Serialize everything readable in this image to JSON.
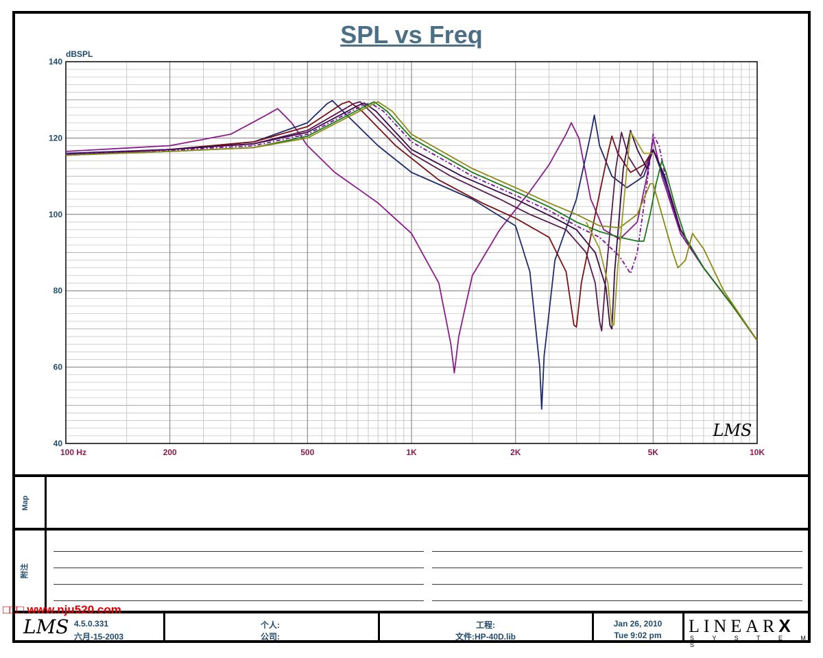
{
  "title": "SPL vs Freq",
  "chart_data": {
    "type": "line",
    "title": "SPL vs Freq",
    "ylabel": "dBSPL",
    "xlabel": "",
    "x_scale": "log",
    "xlim": [
      100,
      10000
    ],
    "ylim": [
      40,
      140
    ],
    "grid": true,
    "x_ticks": [
      {
        "v": 100,
        "label": "100  Hz"
      },
      {
        "v": 200,
        "label": "200"
      },
      {
        "v": 500,
        "label": "500"
      },
      {
        "v": 1000,
        "label": "1K"
      },
      {
        "v": 2000,
        "label": "2K"
      },
      {
        "v": 5000,
        "label": "5K"
      },
      {
        "v": 10000,
        "label": "10K"
      }
    ],
    "y_ticks": [
      {
        "v": 40,
        "label": "40"
      },
      {
        "v": 60,
        "label": "60"
      },
      {
        "v": 80,
        "label": "80"
      },
      {
        "v": 100,
        "label": "100"
      },
      {
        "v": 120,
        "label": "120"
      },
      {
        "v": 140,
        "label": "140"
      }
    ],
    "series": [
      {
        "color": "#8b1a8b",
        "dash": "",
        "points": [
          [
            100,
            116.5
          ],
          [
            200,
            118
          ],
          [
            300,
            121
          ],
          [
            380,
            126
          ],
          [
            410,
            127.7
          ],
          [
            450,
            124
          ],
          [
            500,
            118
          ],
          [
            600,
            111
          ],
          [
            800,
            103
          ],
          [
            1000,
            95
          ],
          [
            1200,
            82
          ],
          [
            1300,
            66
          ],
          [
            1330,
            58.5
          ],
          [
            1370,
            68
          ],
          [
            1500,
            84
          ],
          [
            1800,
            96
          ],
          [
            2200,
            106
          ],
          [
            2500,
            113
          ],
          [
            2800,
            121
          ],
          [
            2900,
            124
          ],
          [
            3050,
            120
          ],
          [
            3300,
            104
          ],
          [
            3600,
            96
          ],
          [
            4000,
            93.5
          ],
          [
            4500,
            98
          ],
          [
            4800,
            110
          ],
          [
            5000,
            120
          ],
          [
            5300,
            110
          ],
          [
            6000,
            95
          ],
          [
            7000,
            86
          ],
          [
            8500,
            76
          ],
          [
            10000,
            67
          ]
        ]
      },
      {
        "color": "#1f2a6e",
        "dash": "",
        "points": [
          [
            100,
            116
          ],
          [
            200,
            117
          ],
          [
            350,
            119
          ],
          [
            500,
            124
          ],
          [
            570,
            129
          ],
          [
            590,
            129.8
          ],
          [
            650,
            126
          ],
          [
            800,
            118
          ],
          [
            1000,
            111
          ],
          [
            1500,
            104
          ],
          [
            2000,
            97
          ],
          [
            2200,
            85
          ],
          [
            2350,
            60
          ],
          [
            2380,
            49
          ],
          [
            2420,
            63
          ],
          [
            2600,
            88
          ],
          [
            3000,
            104
          ],
          [
            3300,
            121
          ],
          [
            3380,
            126
          ],
          [
            3500,
            118
          ],
          [
            3800,
            110
          ],
          [
            4200,
            107
          ],
          [
            4700,
            110
          ],
          [
            5000,
            117
          ],
          [
            5400,
            109
          ],
          [
            6000,
            96
          ],
          [
            7000,
            86
          ],
          [
            8500,
            76
          ],
          [
            10000,
            67
          ]
        ]
      },
      {
        "color": "#7a1010",
        "dash": "",
        "points": [
          [
            100,
            115.5
          ],
          [
            200,
            117
          ],
          [
            350,
            119
          ],
          [
            500,
            123
          ],
          [
            630,
            129
          ],
          [
            660,
            129.6
          ],
          [
            720,
            127
          ],
          [
            900,
            118
          ],
          [
            1200,
            109
          ],
          [
            1600,
            103
          ],
          [
            2000,
            99
          ],
          [
            2500,
            94
          ],
          [
            2800,
            85
          ],
          [
            2950,
            71
          ],
          [
            3000,
            70.5
          ],
          [
            3100,
            82
          ],
          [
            3400,
            100
          ],
          [
            3700,
            116
          ],
          [
            3800,
            120.5
          ],
          [
            3950,
            116
          ],
          [
            4300,
            111
          ],
          [
            4700,
            113
          ],
          [
            5000,
            117
          ],
          [
            5400,
            110
          ],
          [
            6000,
            96
          ],
          [
            7000,
            86
          ],
          [
            8500,
            76
          ],
          [
            10000,
            67
          ]
        ]
      },
      {
        "color": "#5a1a50",
        "dash": "",
        "points": [
          [
            100,
            115.8
          ],
          [
            200,
            117
          ],
          [
            350,
            118.5
          ],
          [
            500,
            122
          ],
          [
            680,
            129
          ],
          [
            710,
            129.5
          ],
          [
            760,
            127
          ],
          [
            1000,
            116
          ],
          [
            1300,
            110
          ],
          [
            1800,
            104
          ],
          [
            2200,
            100
          ],
          [
            2800,
            96
          ],
          [
            3200,
            90
          ],
          [
            3400,
            82
          ],
          [
            3500,
            72
          ],
          [
            3550,
            69.5
          ],
          [
            3650,
            84
          ],
          [
            3900,
            112
          ],
          [
            4050,
            121.5
          ],
          [
            4250,
            115
          ],
          [
            4600,
            110
          ],
          [
            5000,
            117
          ],
          [
            5400,
            110
          ],
          [
            6000,
            96
          ],
          [
            7000,
            86
          ],
          [
            8500,
            76
          ],
          [
            10000,
            67
          ]
        ]
      },
      {
        "color": "#3a0a4a",
        "dash": "",
        "points": [
          [
            100,
            115.7
          ],
          [
            200,
            117
          ],
          [
            350,
            118.5
          ],
          [
            500,
            121.5
          ],
          [
            700,
            128.5
          ],
          [
            730,
            129.2
          ],
          [
            790,
            127
          ],
          [
            1000,
            117
          ],
          [
            1400,
            110
          ],
          [
            2000,
            104
          ],
          [
            2600,
            99
          ],
          [
            3000,
            96
          ],
          [
            3400,
            90
          ],
          [
            3650,
            81
          ],
          [
            3750,
            71
          ],
          [
            3800,
            70
          ],
          [
            3870,
            85
          ],
          [
            4100,
            112
          ],
          [
            4300,
            122
          ],
          [
            4500,
            117
          ],
          [
            4800,
            112
          ],
          [
            5000,
            117
          ],
          [
            5400,
            110
          ],
          [
            6000,
            96
          ],
          [
            7000,
            86
          ],
          [
            8500,
            76
          ],
          [
            10000,
            67
          ]
        ]
      },
      {
        "color": "#7a0aa0",
        "dash": "6,3,2,3",
        "points": [
          [
            100,
            115.8
          ],
          [
            200,
            116.8
          ],
          [
            350,
            118
          ],
          [
            500,
            121
          ],
          [
            720,
            128.5
          ],
          [
            760,
            129.2
          ],
          [
            830,
            127
          ],
          [
            1000,
            119
          ],
          [
            1500,
            110
          ],
          [
            2000,
            105
          ],
          [
            2500,
            101
          ],
          [
            3000,
            97
          ],
          [
            3500,
            94
          ],
          [
            4000,
            89
          ],
          [
            4300,
            84.5
          ],
          [
            4500,
            90
          ],
          [
            4800,
            108
          ],
          [
            5000,
            121
          ],
          [
            5200,
            118
          ],
          [
            5600,
            104
          ],
          [
            6000,
            95
          ],
          [
            7000,
            86
          ],
          [
            8500,
            76
          ],
          [
            10000,
            67
          ]
        ]
      },
      {
        "color": "#1a7a1a",
        "dash": "",
        "points": [
          [
            100,
            115.5
          ],
          [
            200,
            116.5
          ],
          [
            350,
            117.5
          ],
          [
            500,
            120.5
          ],
          [
            740,
            128.5
          ],
          [
            780,
            129.5
          ],
          [
            850,
            127
          ],
          [
            1000,
            120
          ],
          [
            1500,
            111
          ],
          [
            2000,
            106
          ],
          [
            2500,
            102
          ],
          [
            3000,
            98
          ],
          [
            3500,
            95.5
          ],
          [
            4000,
            94
          ],
          [
            4500,
            93
          ],
          [
            4700,
            93
          ],
          [
            4900,
            100
          ],
          [
            5100,
            108
          ],
          [
            5300,
            114
          ],
          [
            5450,
            111
          ],
          [
            5800,
            102
          ],
          [
            6200,
            94
          ],
          [
            7000,
            86
          ],
          [
            8500,
            76
          ],
          [
            10000,
            67
          ]
        ]
      },
      {
        "color": "#8a8a10",
        "dash": "",
        "points": [
          [
            100,
            115.5
          ],
          [
            200,
            116.5
          ],
          [
            350,
            117.5
          ],
          [
            500,
            120
          ],
          [
            760,
            128.5
          ],
          [
            800,
            129.5
          ],
          [
            880,
            127
          ],
          [
            1000,
            121
          ],
          [
            1500,
            112
          ],
          [
            2000,
            107
          ],
          [
            2500,
            103
          ],
          [
            3000,
            100
          ],
          [
            3500,
            97
          ],
          [
            4000,
            96.5
          ],
          [
            4500,
            100
          ],
          [
            4900,
            108
          ],
          [
            5000,
            108
          ],
          [
            5300,
            100
          ],
          [
            5700,
            90
          ],
          [
            5900,
            86
          ],
          [
            6200,
            88
          ],
          [
            6500,
            95
          ],
          [
            7000,
            91
          ],
          [
            8000,
            80
          ],
          [
            10000,
            67
          ]
        ]
      },
      {
        "color": "#9a9a20",
        "dash": "",
        "points": [
          [
            3200,
            98
          ],
          [
            3500,
            91
          ],
          [
            3700,
            82
          ],
          [
            3800,
            71
          ],
          [
            3850,
            71
          ],
          [
            3950,
            86
          ],
          [
            4200,
            112
          ],
          [
            4300,
            121.5
          ],
          [
            4420,
            120
          ],
          [
            4700,
            116
          ],
          [
            5000,
            116
          ]
        ]
      }
    ]
  },
  "bottom": {
    "map_label": "Map",
    "notes_label": "附注",
    "version": "4.5.0.331",
    "version_date": "六月-15-2003",
    "person_label": "个人:",
    "company_label": "公司:",
    "project_label": "工程:",
    "file_label": "文件:HP-40D.lib",
    "date": "Jan 26, 2010",
    "time": "Tue  9:02 pm",
    "brand_main": "LINEAR",
    "brand_x": "X",
    "brand_sub": "S Y S T E M S",
    "lms_logo": "LMS"
  },
  "watermark": "□□□ www.nju520.com"
}
